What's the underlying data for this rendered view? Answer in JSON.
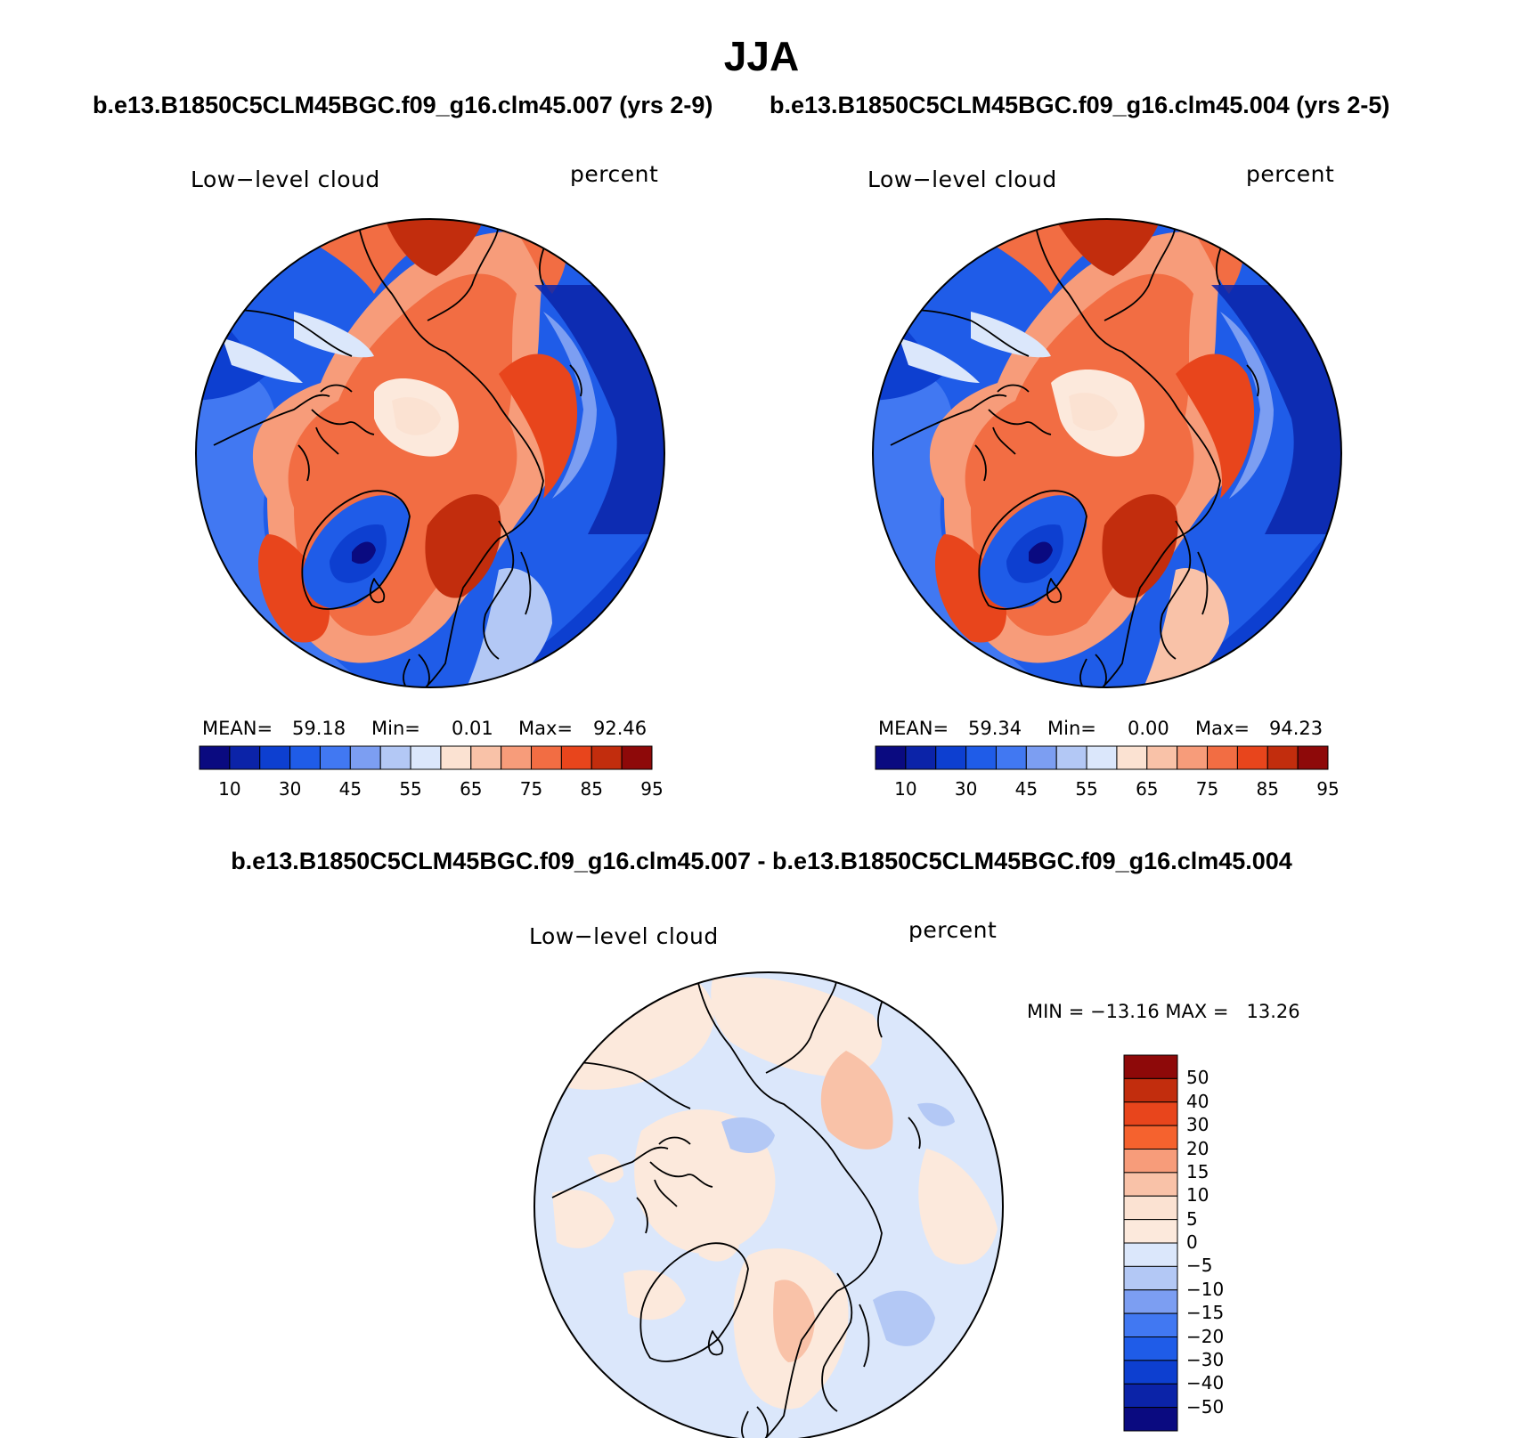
{
  "page_title": "JJA",
  "top_subtitle_left": "b.e13.B1850C5CLM45BGC.f09_g16.clm45.007 (yrs 2-9)",
  "top_subtitle_right": "b.e13.B1850C5CLM45BGC.f09_g16.clm45.004 (yrs 2-5)",
  "bottom_subtitle": "b.e13.B1850C5CLM45BGC.f09_g16.clm45.007 - b.e13.B1850C5CLM45BGC.f09_g16.clm45.004",
  "panels": [
    {
      "variable": "Low−level cloud",
      "units": "percent",
      "mean_label": "MEAN=",
      "mean": "59.18",
      "min_label": "Min=",
      "min": "0.01",
      "max_label": "Max=",
      "max": "92.46"
    },
    {
      "variable": "Low−level cloud",
      "units": "percent",
      "mean_label": "MEAN=",
      "mean": "59.34",
      "min_label": "Min=",
      "min": "0.00",
      "max_label": "Max=",
      "max": "94.23"
    },
    {
      "variable": "Low−level cloud",
      "units": "percent",
      "minmax_text": "MIN = −13.16 MAX =   13.26"
    }
  ],
  "colorbar_abs": {
    "tick_labels": [
      "10",
      "30",
      "45",
      "55",
      "65",
      "75",
      "85",
      "95"
    ],
    "colors": [
      "#0a0a80",
      "#0b23a8",
      "#0d3fd0",
      "#1f5ce8",
      "#4178f2",
      "#7c9ef2",
      "#b3c8f5",
      "#dbe7fb",
      "#fbe2d2",
      "#f9c2a8",
      "#f79c7a",
      "#f26d43",
      "#e8451c",
      "#c22d0d",
      "#8e0909"
    ]
  },
  "colorbar_diff": {
    "tick_labels": [
      "50",
      "40",
      "30",
      "20",
      "15",
      "10",
      "5",
      "0",
      "−5",
      "−10",
      "−15",
      "−20",
      "−30",
      "−40",
      "−50"
    ],
    "colors": [
      "#8e0909",
      "#c22d0d",
      "#e8451c",
      "#f5622e",
      "#f79c7a",
      "#f9c2a8",
      "#fbe2d2",
      "#fce9dc",
      "#dbe7fb",
      "#b3c8f5",
      "#7c9ef2",
      "#4178f2",
      "#1f5ce8",
      "#0d3fd0",
      "#0b23a8",
      "#0a0a80"
    ]
  }
}
